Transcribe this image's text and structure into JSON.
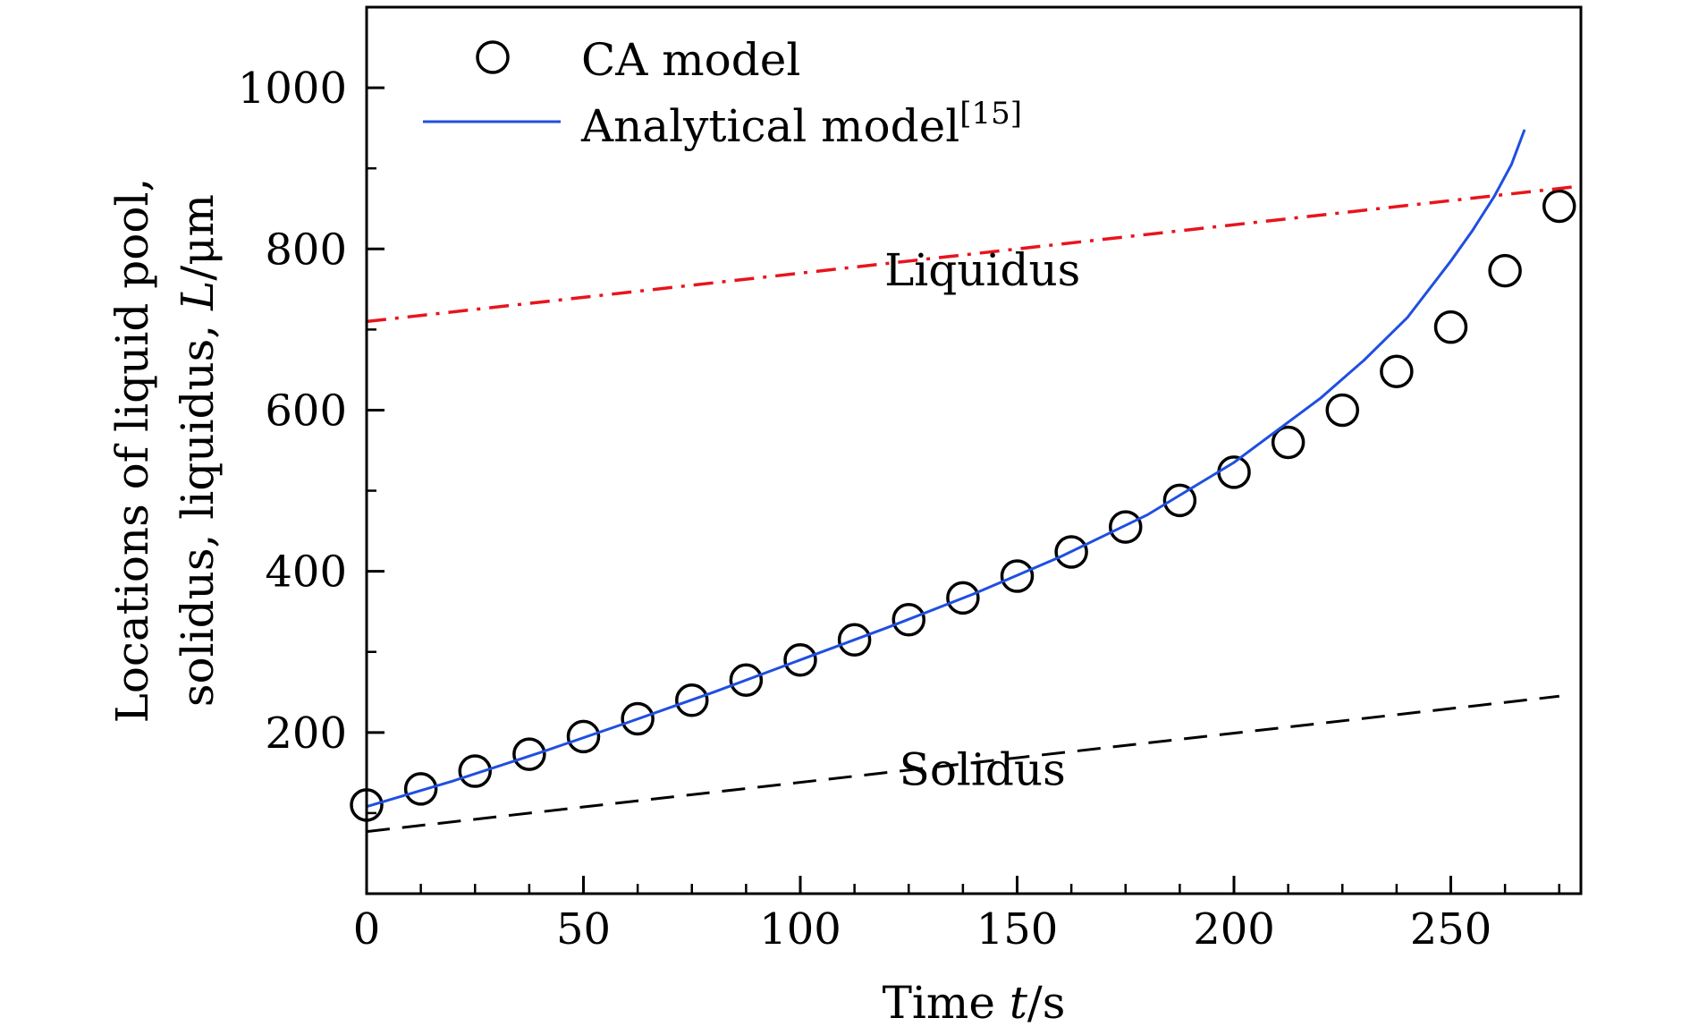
{
  "chart_data": {
    "type": "line",
    "xlabel_prefix": "Time ",
    "xlabel_var": "t",
    "xlabel_unit": "/s",
    "ylabel_line1": "Locations of liquid pool,",
    "ylabel_line2_prefix": "solidus, liquidus, ",
    "ylabel_line2_var": "L",
    "ylabel_line2_unit": "/μm",
    "xlim": [
      0,
      280
    ],
    "ylim": [
      0,
      1100
    ],
    "x_ticks": [
      0,
      50,
      100,
      150,
      200,
      250
    ],
    "x_minor_ticks": [
      12.5,
      25,
      37.5,
      62.5,
      75,
      87.5,
      112.5,
      125,
      137.5,
      162.5,
      175,
      187.5,
      212.5,
      225,
      237.5,
      262.5,
      275
    ],
    "y_ticks": [
      200,
      400,
      600,
      800,
      1000
    ],
    "y_minor_ticks": [
      100,
      300,
      500,
      700,
      900
    ],
    "legend": {
      "position": "top-left",
      "entries": [
        {
          "label": "CA model",
          "marker": "circle"
        },
        {
          "label": "Analytical model",
          "superscript": "[15]",
          "marker": "line"
        }
      ]
    },
    "series": [
      {
        "name": "CA model",
        "style": "marker-circle",
        "color": "#000000",
        "x": [
          0,
          12.5,
          25,
          37.5,
          50,
          62.5,
          75,
          87.5,
          100,
          112.5,
          125,
          137.5,
          150,
          162.5,
          175,
          187.5,
          200,
          212.5,
          225,
          237.5,
          250,
          262.5,
          275
        ],
        "y": [
          110,
          130,
          152,
          173,
          195,
          217,
          240,
          265,
          290,
          315,
          340,
          367,
          394,
          424,
          455,
          488,
          523,
          560,
          600,
          648,
          703,
          773,
          853
        ]
      },
      {
        "name": "Analytical model",
        "style": "solid",
        "color": "#1f4fe0",
        "x": [
          0,
          20,
          40,
          60,
          80,
          100,
          120,
          140,
          160,
          180,
          200,
          220,
          230,
          240,
          250,
          255,
          260,
          264,
          267
        ],
        "y": [
          108,
          140,
          175,
          212,
          250,
          290,
          330,
          372,
          418,
          470,
          535,
          615,
          662,
          715,
          785,
          823,
          865,
          905,
          948
        ]
      },
      {
        "name": "Liquidus",
        "style": "dash-dot",
        "color": "#e8141c",
        "x": [
          0,
          280
        ],
        "y": [
          710,
          878
        ]
      },
      {
        "name": "Solidus",
        "style": "dashed",
        "color": "#000000",
        "x": [
          0,
          275
        ],
        "y": [
          77,
          245
        ]
      }
    ],
    "annotations": [
      {
        "text": "Liquidus",
        "x": 142,
        "y": 775
      },
      {
        "text": "Solidus",
        "x": 142,
        "y": 155
      }
    ]
  }
}
